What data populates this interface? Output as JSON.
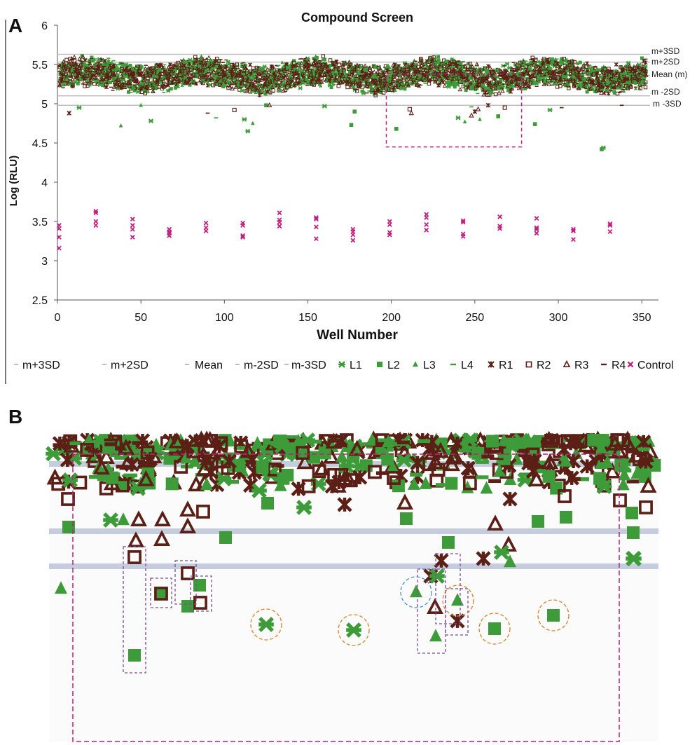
{
  "panel_a": {
    "letter": "A",
    "title": "Compound Screen",
    "xlabel": "Well Number",
    "ylabel": "Log (RLU)",
    "ref_labels": [
      "m+3SD",
      "m+2SD",
      "Mean (m)",
      "m -2SD",
      "m -3SD"
    ],
    "legend": [
      "m+3SD",
      "m+2SD",
      "Mean",
      "m-2SD",
      "m-3SD",
      "L1",
      "L2",
      "L3",
      "L4",
      "R1",
      "R2",
      "R3",
      "R4",
      "Control"
    ]
  },
  "panel_b": {
    "letter": "B"
  },
  "colors": {
    "green": "#3e9b3a",
    "brown": "#5b1f16",
    "magenta": "#c2207f",
    "refline": "#bfbfbf",
    "refline_b": "#c5ccdd",
    "box": "#7a4c9c",
    "orange_circle": "#d9822b",
    "blue_circle": "#4a90c8"
  },
  "chart_data": [
    {
      "type": "scatter",
      "title": "Compound Screen",
      "xlabel": "Well Number",
      "ylabel": "Log (RLU)",
      "xlim": [
        0,
        360
      ],
      "ylim": [
        2.5,
        6
      ],
      "xticks": [
        0,
        50,
        100,
        150,
        200,
        250,
        300,
        350
      ],
      "yticks": [
        2.5,
        3,
        3.5,
        4,
        4.5,
        5,
        5.5,
        6
      ],
      "grid": false,
      "legend_position": "bottom",
      "reference_lines": [
        {
          "name": "m+3SD",
          "y": 5.63
        },
        {
          "name": "m+2SD",
          "y": 5.53
        },
        {
          "name": "Mean (m)",
          "y": 5.36
        },
        {
          "name": "m -2SD",
          "y": 5.1
        },
        {
          "name": "m -3SD",
          "y": 4.98
        }
      ],
      "series": [
        {
          "name": "L1",
          "y_range": [
            4.65,
            5.6
          ]
        },
        {
          "name": "L2",
          "y_range": [
            4.42,
            5.6
          ]
        },
        {
          "name": "L3",
          "y_range": [
            4.7,
            5.65
          ]
        },
        {
          "name": "L4",
          "y_range": [
            4.9,
            5.6
          ]
        },
        {
          "name": "R1",
          "y_range": [
            4.88,
            5.62
          ]
        },
        {
          "name": "R2",
          "y_range": [
            4.9,
            5.6
          ]
        },
        {
          "name": "R3",
          "y_range": [
            4.8,
            5.62
          ]
        },
        {
          "name": "R4",
          "y_range": [
            4.8,
            5.6
          ]
        },
        {
          "name": "Control",
          "points": [
            [
              1,
              3.45
            ],
            [
              1,
              3.41
            ],
            [
              1,
              3.3
            ],
            [
              1,
              3.16
            ],
            [
              23,
              3.63
            ],
            [
              23,
              3.61
            ],
            [
              23,
              3.5
            ],
            [
              23,
              3.45
            ],
            [
              45,
              3.53
            ],
            [
              45,
              3.45
            ],
            [
              45,
              3.4
            ],
            [
              45,
              3.3
            ],
            [
              67,
              3.4
            ],
            [
              67,
              3.37
            ],
            [
              67,
              3.35
            ],
            [
              67,
              3.32
            ],
            [
              89,
              3.48
            ],
            [
              89,
              3.42
            ],
            [
              89,
              3.38
            ],
            [
              111,
              3.48
            ],
            [
              111,
              3.45
            ],
            [
              111,
              3.32
            ],
            [
              111,
              3.3
            ],
            [
              133,
              3.61
            ],
            [
              133,
              3.52
            ],
            [
              133,
              3.49
            ],
            [
              133,
              3.44
            ],
            [
              155,
              3.55
            ],
            [
              155,
              3.53
            ],
            [
              155,
              3.43
            ],
            [
              155,
              3.28
            ],
            [
              177,
              3.4
            ],
            [
              177,
              3.37
            ],
            [
              177,
              3.33
            ],
            [
              177,
              3.26
            ],
            [
              199,
              3.5
            ],
            [
              199,
              3.46
            ],
            [
              199,
              3.36
            ],
            [
              199,
              3.33
            ],
            [
              221,
              3.59
            ],
            [
              221,
              3.55
            ],
            [
              221,
              3.46
            ],
            [
              221,
              3.39
            ],
            [
              243,
              3.51
            ],
            [
              243,
              3.49
            ],
            [
              243,
              3.34
            ],
            [
              243,
              3.31
            ],
            [
              265,
              3.56
            ],
            [
              265,
              3.44
            ],
            [
              265,
              3.41
            ],
            [
              287,
              3.54
            ],
            [
              287,
              3.42
            ],
            [
              287,
              3.4
            ],
            [
              287,
              3.35
            ],
            [
              309,
              3.4
            ],
            [
              309,
              3.38
            ],
            [
              309,
              3.27
            ],
            [
              331,
              3.47
            ],
            [
              331,
              3.45
            ],
            [
              331,
              3.37
            ]
          ]
        }
      ],
      "highlight_box": {
        "x": [
          197,
          278
        ],
        "y": [
          4.45,
          5.38
        ]
      }
    },
    {
      "type": "scatter",
      "description_type": "zoom of highlighted region",
      "series": [
        {
          "name": "L1"
        },
        {
          "name": "L2"
        },
        {
          "name": "L3"
        },
        {
          "name": "L4"
        },
        {
          "name": "R1"
        },
        {
          "name": "R2"
        },
        {
          "name": "R3"
        },
        {
          "name": "R4"
        }
      ]
    }
  ]
}
